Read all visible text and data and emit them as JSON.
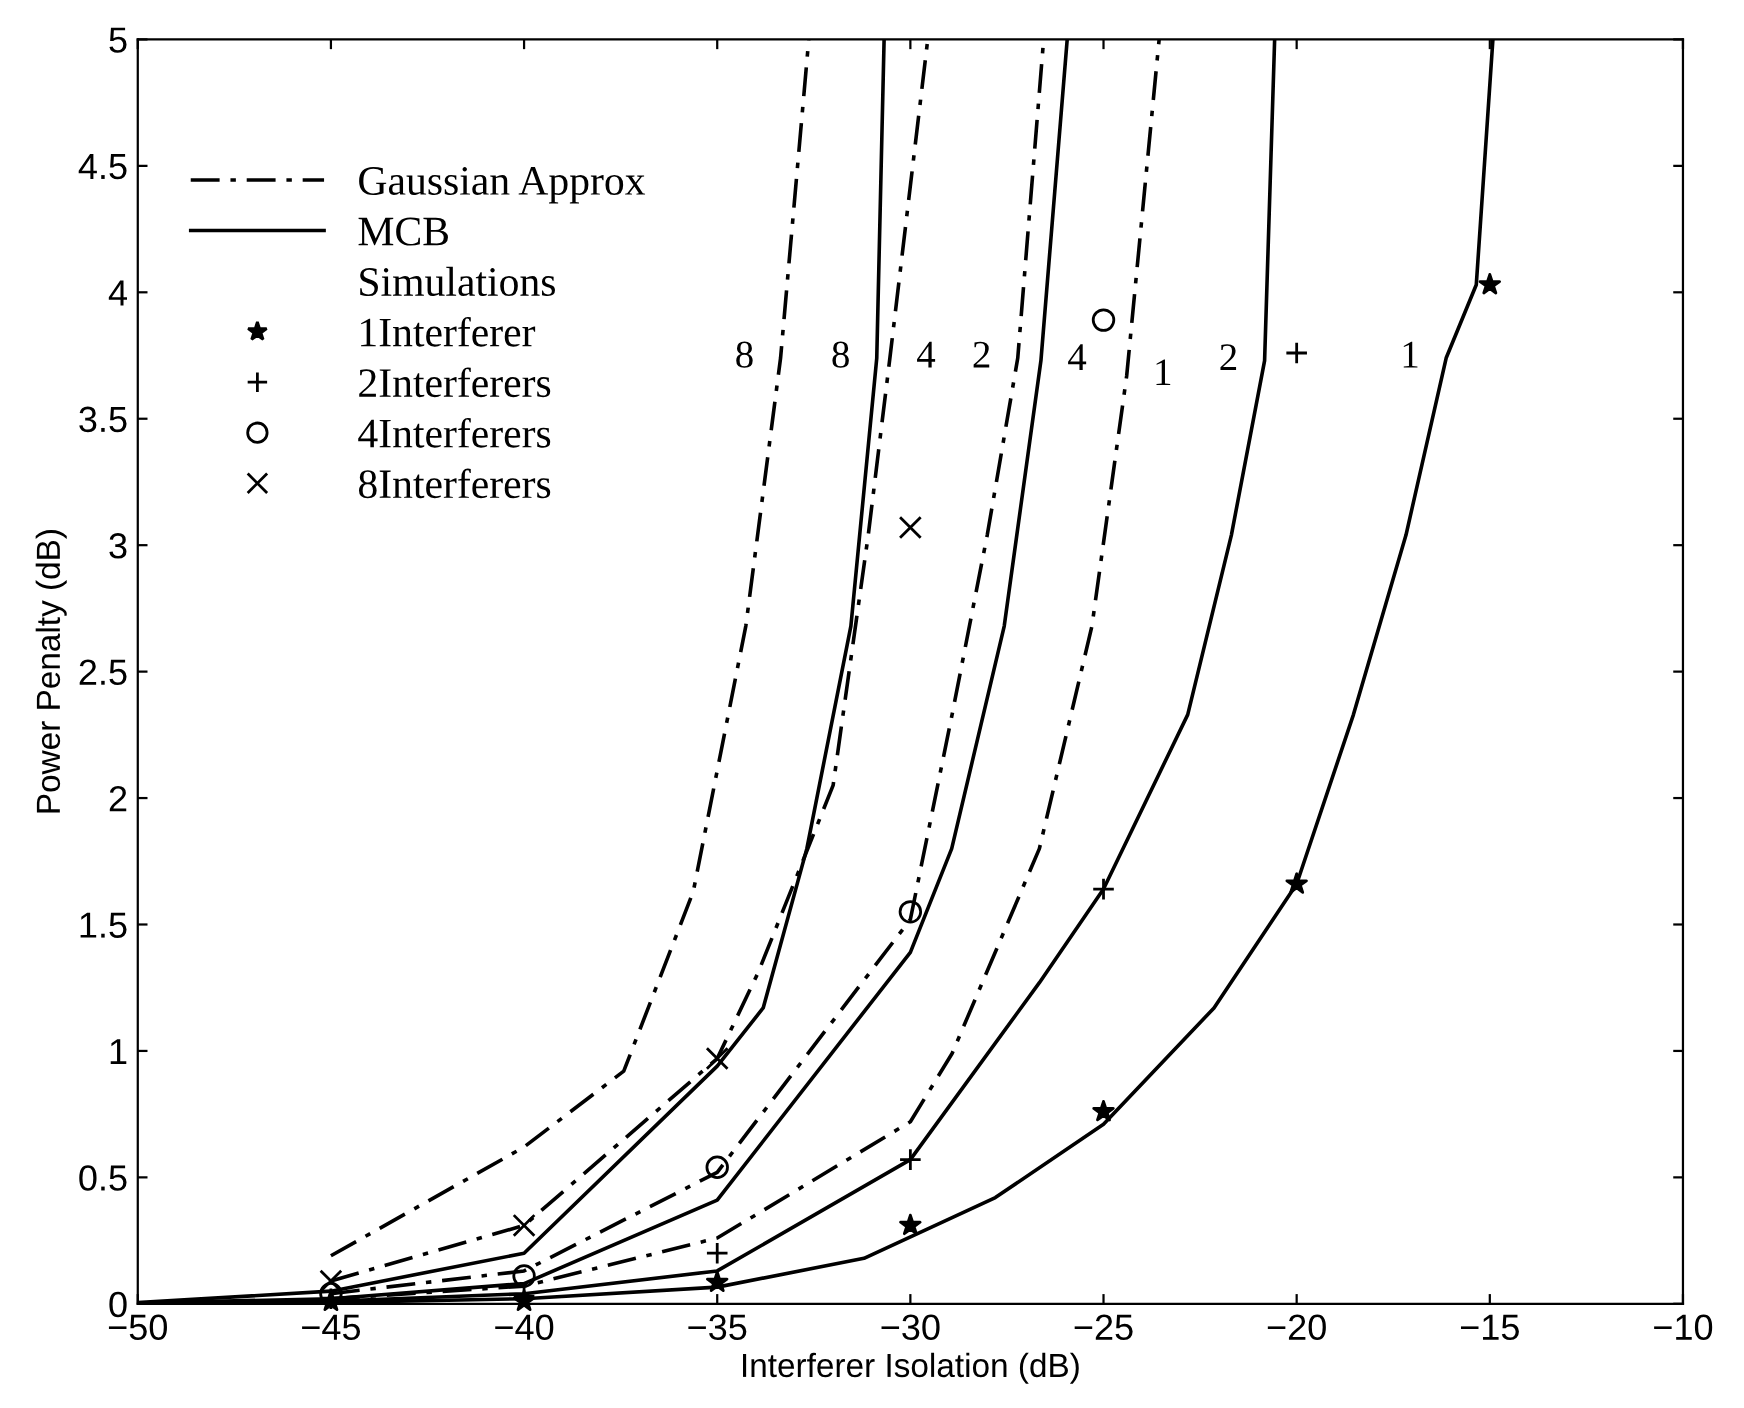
{
  "chart_data": {
    "type": "line",
    "xlabel": "Interferer Isolation (dB)",
    "ylabel": "Power Penalty (dB)",
    "legend_title": "Simulations",
    "xlim": [
      -50,
      -10
    ],
    "xticks": [
      -50,
      -45,
      -40,
      -35,
      -30,
      -25,
      -20,
      -15,
      -10
    ],
    "ylim": [
      0,
      5
    ],
    "yticks": [
      0,
      0.5,
      1,
      1.5,
      2,
      2.5,
      3,
      3.5,
      4,
      4.5,
      5
    ],
    "grid": false,
    "legend": "top left",
    "series": [
      {
        "name": "Gaussian Approx",
        "color": "#000000",
        "line_style": "dashdot",
        "x": [
          -45,
          -40,
          -37.42,
          -35.62,
          -34.26,
          -33.36,
          -32.63
        ],
        "values": [
          0.19,
          0.62,
          0.92,
          1.63,
          2.68,
          3.74,
          5
        ]
      },
      {
        "color": "#000000",
        "line_style": "dashdot",
        "x": [
          -45,
          -40,
          -35,
          -33.94,
          -32.0,
          -31.09,
          -30.53,
          -29.55
        ],
        "values": [
          0.09,
          0.31,
          0.97,
          1.31,
          2.05,
          3.04,
          3.74,
          5
        ]
      },
      {
        "color": "#000000",
        "line_style": "dashdot",
        "x": [
          -45,
          -40,
          -35,
          -30,
          -28.92,
          -28.01,
          -27.22,
          -26.55
        ],
        "values": [
          0.04,
          0.13,
          0.52,
          1.52,
          2.33,
          3.04,
          3.74,
          5
        ]
      },
      {
        "color": "#000000",
        "line_style": "dashdot",
        "x": [
          -45,
          -40,
          -35,
          -30,
          -28.92,
          -26.66,
          -25.3,
          -24.4,
          -23.56
        ],
        "values": [
          0.02,
          0.07,
          0.26,
          0.72,
          0.99,
          1.8,
          2.68,
          3.67,
          5
        ]
      },
      {
        "name": "MCB",
        "color": "#000000",
        "line_style": "solid",
        "x": [
          -50,
          -45,
          -40,
          -35,
          -33.81,
          -32.68,
          -31.54,
          -30.87,
          -30.68
        ],
        "values": [
          0.005,
          0.05,
          0.2,
          0.94,
          1.17,
          1.8,
          2.68,
          3.74,
          5
        ]
      },
      {
        "color": "#000000",
        "line_style": "solid",
        "x": [
          -50,
          -45,
          -40,
          -35,
          -30,
          -28.93,
          -27.57,
          -26.62,
          -25.94
        ],
        "values": [
          0.003,
          0.02,
          0.08,
          0.41,
          1.39,
          1.8,
          2.68,
          3.73,
          5
        ]
      },
      {
        "color": "#000000",
        "line_style": "solid",
        "x": [
          -50,
          -45,
          -40,
          -35,
          -30,
          -26.66,
          -25,
          -22.82,
          -21.69,
          -20.83,
          -20.57
        ],
        "values": [
          0.002,
          0.01,
          0.04,
          0.13,
          0.57,
          1.27,
          1.64,
          2.33,
          3.04,
          3.73,
          5
        ]
      },
      {
        "color": "#000000",
        "line_style": "solid",
        "x": [
          -50,
          -45,
          -40,
          -35,
          -31.2,
          -27.8,
          -25,
          -22.14,
          -20,
          -18.53,
          -17.17,
          -16.13,
          -15.35,
          -14.92
        ],
        "values": [
          0,
          0.005,
          0.02,
          0.066,
          0.18,
          0.42,
          0.71,
          1.17,
          1.66,
          2.33,
          3.04,
          3.74,
          4.03,
          5
        ]
      },
      {
        "name": "1Interferer",
        "type": "scatter",
        "marker": "star",
        "color": "#000000",
        "x": [
          -45,
          -40,
          -35,
          -30,
          -25,
          -20,
          -15
        ],
        "values": [
          0.01,
          0.01,
          0.085,
          0.31,
          0.76,
          1.66,
          4.03
        ]
      },
      {
        "name": "2Interferers",
        "type": "scatter",
        "marker": "plus",
        "color": "#000000",
        "x": [
          -45,
          -40,
          -35,
          -30,
          -25,
          -20
        ],
        "values": [
          0.02,
          0.03,
          0.2,
          0.57,
          1.64,
          3.76
        ]
      },
      {
        "name": "4Interferers",
        "type": "scatter",
        "marker": "circle",
        "color": "#000000",
        "x": [
          -45,
          -40,
          -35,
          -30,
          -25
        ],
        "values": [
          0.04,
          0.11,
          0.54,
          1.55,
          3.89
        ]
      },
      {
        "name": "8Interferers",
        "type": "scatter",
        "marker": "cross",
        "color": "#000000",
        "x": [
          -45,
          -40,
          -35,
          -30
        ],
        "values": [
          0.09,
          0.31,
          0.97,
          3.07
        ]
      }
    ],
    "annotations": [
      {
        "text": "8",
        "x": -33.36,
        "y": 3.74
      },
      {
        "text": "8",
        "x": -30.87,
        "y": 3.74
      },
      {
        "text": "4",
        "x": -30.53,
        "y": 3.74
      },
      {
        "text": "2",
        "x": -27.22,
        "y": 3.74
      },
      {
        "text": "4",
        "x": -26.62,
        "y": 3.73
      },
      {
        "text": "1",
        "x": -24.4,
        "y": 3.67
      },
      {
        "text": "2",
        "x": -20.83,
        "y": 3.73
      },
      {
        "text": "1",
        "x": -16.13,
        "y": 3.74
      }
    ]
  }
}
